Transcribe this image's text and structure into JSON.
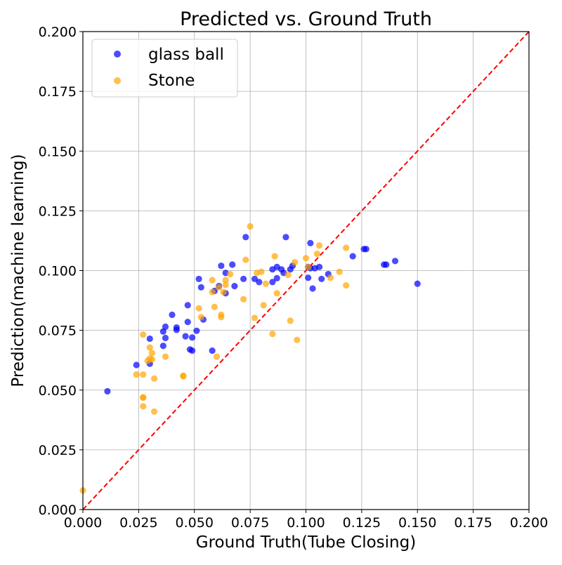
{
  "chart_data": {
    "type": "scatter",
    "title": "Predicted vs. Ground Truth",
    "xlabel": "Ground Truth(Tube Closing)",
    "ylabel": "Prediction(machine learning)",
    "xlim": [
      0,
      0.2
    ],
    "ylim": [
      0,
      0.2
    ],
    "x_ticks": [
      "0.000",
      "0.025",
      "0.050",
      "0.075",
      "0.100",
      "0.125",
      "0.150",
      "0.175",
      "0.200"
    ],
    "y_ticks": [
      "0.000",
      "0.025",
      "0.050",
      "0.075",
      "0.100",
      "0.125",
      "0.150",
      "0.175",
      "0.200"
    ],
    "grid": true,
    "legend_position": "top-left",
    "reference_line": {
      "x": [
        0,
        0.2
      ],
      "y": [
        0,
        0.2
      ],
      "color": "#ff0000",
      "style": "dashed"
    },
    "series": [
      {
        "name": "glass ball",
        "color": "#0000ff",
        "points": [
          [
            0.011,
            0.0495
          ],
          [
            0.024,
            0.0605
          ],
          [
            0.03,
            0.0715
          ],
          [
            0.03,
            0.061
          ],
          [
            0.036,
            0.0745
          ],
          [
            0.036,
            0.0685
          ],
          [
            0.037,
            0.0765
          ],
          [
            0.037,
            0.0718
          ],
          [
            0.04,
            0.0815
          ],
          [
            0.042,
            0.0762
          ],
          [
            0.042,
            0.0752
          ],
          [
            0.046,
            0.0725
          ],
          [
            0.047,
            0.0855
          ],
          [
            0.047,
            0.0785
          ],
          [
            0.048,
            0.067
          ],
          [
            0.049,
            0.072
          ],
          [
            0.049,
            0.0665
          ],
          [
            0.051,
            0.0748
          ],
          [
            0.052,
            0.0965
          ],
          [
            0.053,
            0.093
          ],
          [
            0.054,
            0.0795
          ],
          [
            0.058,
            0.0665
          ],
          [
            0.059,
            0.0915
          ],
          [
            0.061,
            0.0935
          ],
          [
            0.062,
            0.102
          ],
          [
            0.064,
            0.099
          ],
          [
            0.064,
            0.0905
          ],
          [
            0.067,
            0.1025
          ],
          [
            0.068,
            0.0935
          ],
          [
            0.072,
            0.0965
          ],
          [
            0.073,
            0.114
          ],
          [
            0.077,
            0.0965
          ],
          [
            0.079,
            0.0952
          ],
          [
            0.085,
            0.1005
          ],
          [
            0.085,
            0.0952
          ],
          [
            0.087,
            0.1015
          ],
          [
            0.087,
            0.0968
          ],
          [
            0.089,
            0.1005
          ],
          [
            0.09,
            0.099
          ],
          [
            0.091,
            0.114
          ],
          [
            0.093,
            0.1005
          ],
          [
            0.094,
            0.102
          ],
          [
            0.101,
            0.1015
          ],
          [
            0.101,
            0.097
          ],
          [
            0.102,
            0.1115
          ],
          [
            0.102,
            0.101
          ],
          [
            0.103,
            0.0925
          ],
          [
            0.104,
            0.101
          ],
          [
            0.106,
            0.1015
          ],
          [
            0.107,
            0.0965
          ],
          [
            0.11,
            0.0985
          ],
          [
            0.121,
            0.106
          ],
          [
            0.126,
            0.109
          ],
          [
            0.127,
            0.109
          ],
          [
            0.135,
            0.1025
          ],
          [
            0.136,
            0.1025
          ],
          [
            0.14,
            0.104
          ],
          [
            0.15,
            0.0945
          ]
        ]
      },
      {
        "name": "Stone",
        "color": "#ffa500",
        "points": [
          [
            0.0,
            0.008
          ],
          [
            0.024,
            0.0565
          ],
          [
            0.027,
            0.0732
          ],
          [
            0.027,
            0.0565
          ],
          [
            0.027,
            0.047
          ],
          [
            0.027,
            0.0468
          ],
          [
            0.027,
            0.0432
          ],
          [
            0.029,
            0.0622
          ],
          [
            0.03,
            0.0632
          ],
          [
            0.03,
            0.0678
          ],
          [
            0.031,
            0.0655
          ],
          [
            0.031,
            0.0628
          ],
          [
            0.032,
            0.0548
          ],
          [
            0.032,
            0.041
          ],
          [
            0.037,
            0.064
          ],
          [
            0.045,
            0.056
          ],
          [
            0.045,
            0.0558
          ],
          [
            0.052,
            0.0842
          ],
          [
            0.053,
            0.0805
          ],
          [
            0.058,
            0.096
          ],
          [
            0.058,
            0.091
          ],
          [
            0.059,
            0.0848
          ],
          [
            0.06,
            0.064
          ],
          [
            0.061,
            0.093
          ],
          [
            0.062,
            0.0815
          ],
          [
            0.062,
            0.0805
          ],
          [
            0.063,
            0.091
          ],
          [
            0.064,
            0.096
          ],
          [
            0.064,
            0.094
          ],
          [
            0.066,
            0.0985
          ],
          [
            0.072,
            0.088
          ],
          [
            0.073,
            0.1045
          ],
          [
            0.075,
            0.1185
          ],
          [
            0.077,
            0.0802
          ],
          [
            0.078,
            0.099
          ],
          [
            0.08,
            0.0995
          ],
          [
            0.081,
            0.0855
          ],
          [
            0.082,
            0.0945
          ],
          [
            0.085,
            0.0735
          ],
          [
            0.086,
            0.106
          ],
          [
            0.087,
            0.0905
          ],
          [
            0.092,
            0.0982
          ],
          [
            0.093,
            0.079
          ],
          [
            0.095,
            0.1035
          ],
          [
            0.096,
            0.071
          ],
          [
            0.1,
            0.1052
          ],
          [
            0.101,
            0.1015
          ],
          [
            0.105,
            0.107
          ],
          [
            0.106,
            0.1105
          ],
          [
            0.111,
            0.097
          ],
          [
            0.115,
            0.0995
          ],
          [
            0.118,
            0.1095
          ],
          [
            0.118,
            0.0938
          ]
        ]
      }
    ]
  }
}
